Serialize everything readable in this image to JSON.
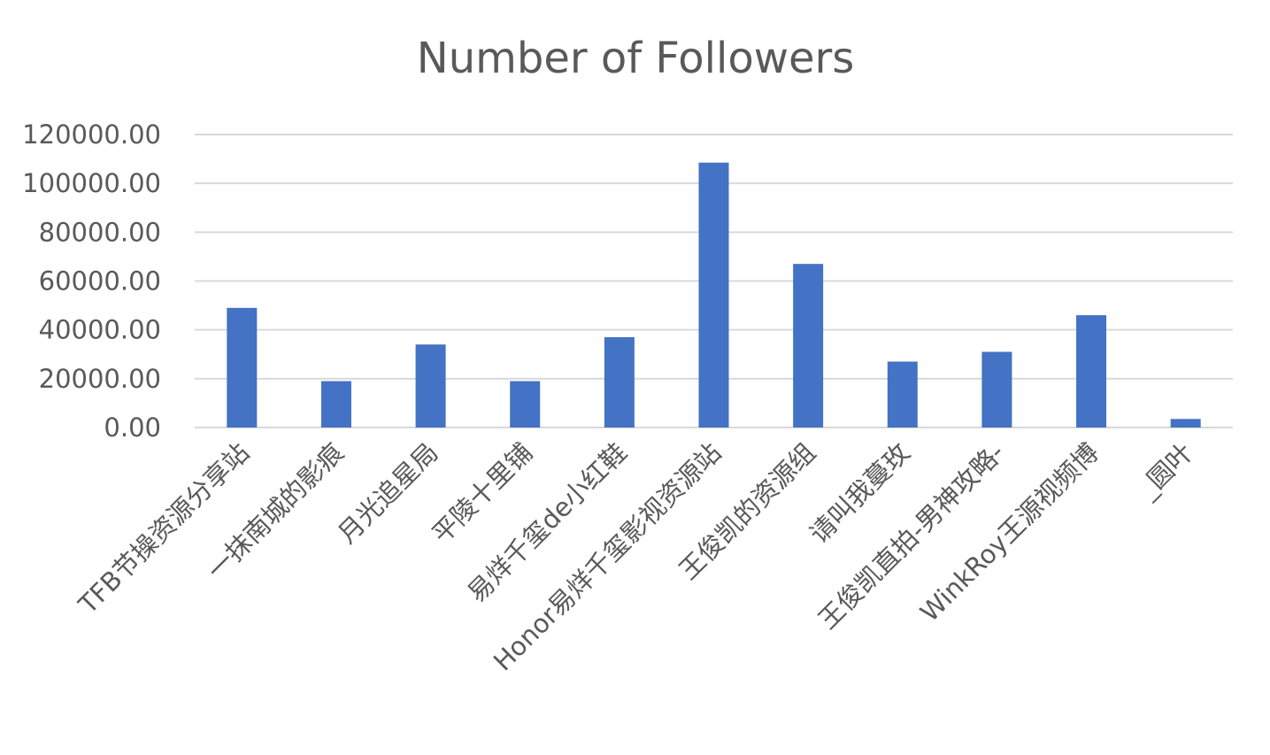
{
  "chart_data": {
    "type": "bar",
    "title": "Number of Followers",
    "xlabel": "",
    "ylabel": "",
    "categories": [
      "TFB节操资源分享站",
      "一抹南城的影痕",
      "月光追星局",
      "平陵十里铺",
      "易烊千玺de小红鞋",
      "Honor易烊千玺影视资源站",
      "王俊凯的资源组",
      "请叫我蔓玫",
      "王俊凯直拍-男神攻略-",
      "WinkRoy王源视频博",
      "_圆叶"
    ],
    "values": [
      49000,
      19000,
      34000,
      19000,
      37000,
      108500,
      67000,
      27000,
      31000,
      46000,
      3500
    ],
    "ylim": [
      0,
      120000
    ],
    "yticks": [
      0,
      20000,
      40000,
      60000,
      80000,
      100000,
      120000
    ],
    "ytick_labels": [
      "0.00",
      "20000.00",
      "40000.00",
      "60000.00",
      "80000.00",
      "100000.00",
      "120000.00"
    ],
    "grid": true,
    "legend": "none",
    "bar_color": "#4472C4",
    "grid_color": "#D9D9D9",
    "text_color": "#595959"
  }
}
